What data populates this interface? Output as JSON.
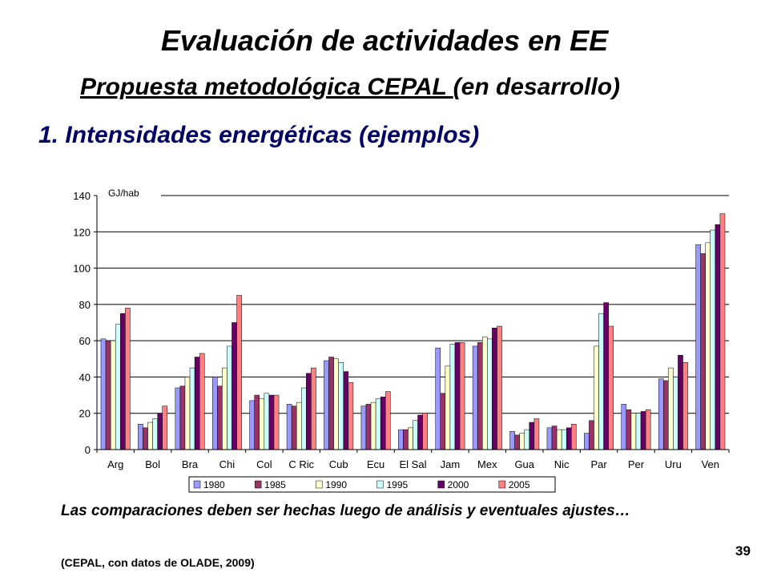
{
  "slide": {
    "title": "Evaluación de actividades en EE",
    "subtitle_underlined": "Propuesta metodológica CEPAL ",
    "subtitle_rest": "(en desarrollo)",
    "section": "1. Intensidades energéticas (ejemplos)",
    "note": "Las comparaciones deben ser hechas luego de análisis y eventuales ajustes…",
    "source": "(CEPAL, con datos de OLADE, 2009)",
    "page_number": "39"
  },
  "chart_data": {
    "type": "bar",
    "unit_label": "GJ/hab",
    "ylim": [
      0,
      140
    ],
    "yticks": [
      0,
      20,
      40,
      60,
      80,
      100,
      120,
      140
    ],
    "grid": true,
    "legend_position": "bottom",
    "categories": [
      "Arg",
      "Bol",
      "Bra",
      "Chi",
      "Col",
      "C Ric",
      "Cub",
      "Ecu",
      "El Sal",
      "Jam",
      "Mex",
      "Gua",
      "Nic",
      "Par",
      "Per",
      "Uru",
      "Ven"
    ],
    "series": [
      {
        "name": "1980",
        "color": "#9999ff",
        "values": [
          61,
          14,
          34,
          40,
          27,
          25,
          49,
          24,
          11,
          56,
          57,
          10,
          12,
          9,
          25,
          39,
          113
        ]
      },
      {
        "name": "1985",
        "color": "#993366",
        "values": [
          60,
          12,
          35,
          35,
          30,
          24,
          51,
          25,
          11,
          31,
          59,
          8,
          13,
          16,
          22,
          38,
          108
        ]
      },
      {
        "name": "1990",
        "color": "#ffffcc",
        "values": [
          60,
          15,
          40,
          45,
          28,
          26,
          50,
          26,
          12,
          46,
          62,
          9,
          11,
          57,
          20,
          45,
          114
        ]
      },
      {
        "name": "1995",
        "color": "#ccffff",
        "values": [
          69,
          17,
          45,
          57,
          31,
          34,
          48,
          28,
          16,
          58,
          61,
          11,
          11,
          75,
          20,
          40,
          121
        ]
      },
      {
        "name": "2000",
        "color": "#660066",
        "values": [
          75,
          20,
          51,
          70,
          30,
          42,
          43,
          29,
          19,
          59,
          67,
          15,
          12,
          81,
          21,
          52,
          124
        ]
      },
      {
        "name": "2005",
        "color": "#ff8080",
        "values": [
          78,
          24,
          53,
          85,
          30,
          45,
          37,
          32,
          20,
          59,
          68,
          17,
          14,
          68,
          22,
          48,
          130
        ]
      }
    ]
  }
}
